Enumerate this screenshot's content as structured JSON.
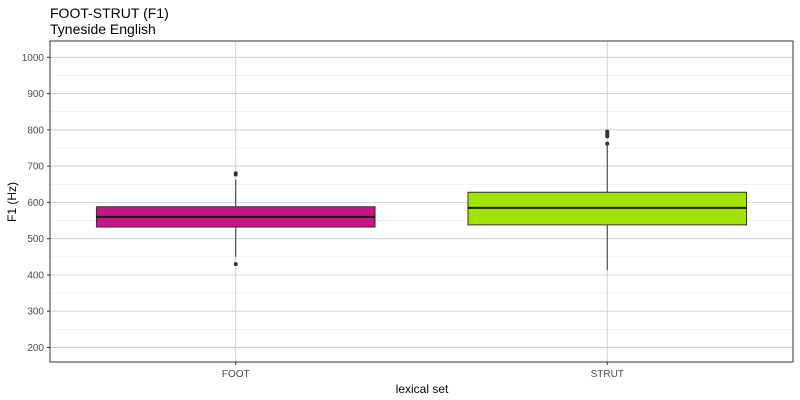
{
  "chart_data": {
    "type": "boxplot",
    "title": "FOOT-STRUT (F1)",
    "subtitle": "Tyneside English",
    "xlabel": "lexical set",
    "ylabel": "F1 (Hz)",
    "ylim": [
      160,
      1045
    ],
    "y_ticks": [
      200,
      300,
      400,
      500,
      600,
      700,
      800,
      900,
      1000
    ],
    "grid": true,
    "legend": "none",
    "categories": [
      "FOOT",
      "STRUT"
    ],
    "boxes": [
      {
        "category": "FOOT",
        "color": "#c71585",
        "whisker_low": 450,
        "q1": 532,
        "median": 560,
        "q3": 588,
        "whisker_high": 663,
        "outliers": [
          430,
          677,
          680
        ]
      },
      {
        "category": "STRUT",
        "color": "#a2e200",
        "whisker_low": 413,
        "q1": 538,
        "median": 585,
        "q3": 628,
        "whisker_high": 757,
        "outliers": [
          762,
          782,
          787,
          791,
          795
        ]
      }
    ]
  }
}
